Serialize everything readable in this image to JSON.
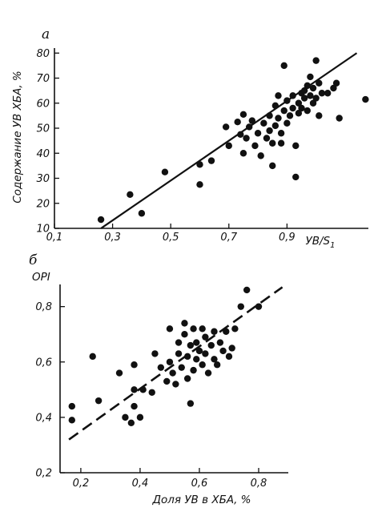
{
  "chart_data": [
    {
      "type": "scatter",
      "panel_label": "a",
      "title": "",
      "xlabel": "УВ/S",
      "xlabel_sub": "1",
      "ylabel": "Содержание УВ ХБА, %",
      "xlim": [
        0.1,
        1.18
      ],
      "ylim": [
        10,
        82
      ],
      "x_ticks": [
        0.1,
        0.3,
        0.5,
        0.7,
        0.9
      ],
      "x_tick_labels": [
        "0,1",
        "0,3",
        "0,5",
        "0,7",
        "0,9"
      ],
      "y_ticks": [
        10,
        20,
        30,
        40,
        50,
        60,
        70,
        80
      ],
      "y_tick_labels": [
        "10",
        "20",
        "30",
        "40",
        "50",
        "60",
        "70",
        "80"
      ],
      "grid": false,
      "fit_line": {
        "style": "solid",
        "x": [
          0.26,
          1.14
        ],
        "y": [
          10,
          80
        ]
      },
      "points": [
        [
          0.26,
          13.5
        ],
        [
          0.36,
          23.5
        ],
        [
          0.4,
          16
        ],
        [
          0.48,
          32.5
        ],
        [
          0.6,
          27.5
        ],
        [
          0.6,
          35.5
        ],
        [
          0.64,
          37
        ],
        [
          0.69,
          50.5
        ],
        [
          0.7,
          43
        ],
        [
          0.73,
          52.5
        ],
        [
          0.74,
          47.5
        ],
        [
          0.75,
          55.5
        ],
        [
          0.75,
          40
        ],
        [
          0.76,
          46
        ],
        [
          0.77,
          50.5
        ],
        [
          0.78,
          53
        ],
        [
          0.79,
          43
        ],
        [
          0.8,
          48
        ],
        [
          0.81,
          39
        ],
        [
          0.82,
          52
        ],
        [
          0.83,
          46
        ],
        [
          0.84,
          55
        ],
        [
          0.84,
          49
        ],
        [
          0.85,
          44
        ],
        [
          0.85,
          35
        ],
        [
          0.86,
          51
        ],
        [
          0.86,
          59
        ],
        [
          0.87,
          63
        ],
        [
          0.87,
          54
        ],
        [
          0.88,
          48
        ],
        [
          0.88,
          44
        ],
        [
          0.89,
          57
        ],
        [
          0.89,
          75
        ],
        [
          0.9,
          52
        ],
        [
          0.9,
          61
        ],
        [
          0.91,
          55
        ],
        [
          0.92,
          58
        ],
        [
          0.92,
          63
        ],
        [
          0.93,
          30.5
        ],
        [
          0.93,
          43
        ],
        [
          0.94,
          60
        ],
        [
          0.94,
          56
        ],
        [
          0.95,
          64
        ],
        [
          0.95,
          58
        ],
        [
          0.96,
          62
        ],
        [
          0.96,
          65
        ],
        [
          0.97,
          57
        ],
        [
          0.97,
          67
        ],
        [
          0.98,
          63
        ],
        [
          0.98,
          70.5
        ],
        [
          0.99,
          60
        ],
        [
          0.99,
          66
        ],
        [
          1.0,
          77
        ],
        [
          1.0,
          62
        ],
        [
          1.01,
          55
        ],
        [
          1.01,
          68
        ],
        [
          1.02,
          64
        ],
        [
          1.04,
          64
        ],
        [
          1.06,
          66
        ],
        [
          1.07,
          68
        ],
        [
          1.08,
          54
        ],
        [
          1.17,
          61.5
        ]
      ]
    },
    {
      "type": "scatter",
      "panel_label": "б",
      "title": "",
      "xlabel": "Доля УВ в ХБА, %",
      "ylabel": "OPI",
      "xlim": [
        0.13,
        0.9
      ],
      "ylim": [
        0.2,
        0.88
      ],
      "x_ticks": [
        0.2,
        0.4,
        0.6,
        0.8
      ],
      "x_tick_labels": [
        "0,2",
        "0,4",
        "0,6",
        "0,8"
      ],
      "y_ticks": [
        0.2,
        0.4,
        0.6,
        0.8
      ],
      "y_tick_labels": [
        "0,2",
        "0,4",
        "0,6",
        "0,8"
      ],
      "grid": false,
      "fit_line": {
        "style": "dashed",
        "x": [
          0.16,
          0.88
        ],
        "y": [
          0.32,
          0.87
        ]
      },
      "points": [
        [
          0.17,
          0.44
        ],
        [
          0.17,
          0.39
        ],
        [
          0.24,
          0.62
        ],
        [
          0.26,
          0.46
        ],
        [
          0.33,
          0.56
        ],
        [
          0.35,
          0.4
        ],
        [
          0.37,
          0.38
        ],
        [
          0.38,
          0.44
        ],
        [
          0.38,
          0.5
        ],
        [
          0.38,
          0.59
        ],
        [
          0.4,
          0.4
        ],
        [
          0.41,
          0.5
        ],
        [
          0.44,
          0.49
        ],
        [
          0.45,
          0.63
        ],
        [
          0.47,
          0.58
        ],
        [
          0.49,
          0.53
        ],
        [
          0.5,
          0.72
        ],
        [
          0.5,
          0.6
        ],
        [
          0.51,
          0.56
        ],
        [
          0.52,
          0.52
        ],
        [
          0.53,
          0.63
        ],
        [
          0.53,
          0.67
        ],
        [
          0.54,
          0.58
        ],
        [
          0.55,
          0.74
        ],
        [
          0.55,
          0.7
        ],
        [
          0.56,
          0.62
        ],
        [
          0.56,
          0.54
        ],
        [
          0.57,
          0.66
        ],
        [
          0.57,
          0.45
        ],
        [
          0.58,
          0.72
        ],
        [
          0.58,
          0.57
        ],
        [
          0.59,
          0.61
        ],
        [
          0.59,
          0.67
        ],
        [
          0.6,
          0.64
        ],
        [
          0.61,
          0.59
        ],
        [
          0.61,
          0.72
        ],
        [
          0.62,
          0.69
        ],
        [
          0.62,
          0.63
        ],
        [
          0.63,
          0.56
        ],
        [
          0.64,
          0.66
        ],
        [
          0.65,
          0.61
        ],
        [
          0.65,
          0.71
        ],
        [
          0.66,
          0.59
        ],
        [
          0.67,
          0.67
        ],
        [
          0.68,
          0.64
        ],
        [
          0.69,
          0.71
        ],
        [
          0.7,
          0.62
        ],
        [
          0.71,
          0.65
        ],
        [
          0.72,
          0.72
        ],
        [
          0.74,
          0.8
        ],
        [
          0.76,
          0.86
        ],
        [
          0.8,
          0.8
        ]
      ]
    }
  ]
}
